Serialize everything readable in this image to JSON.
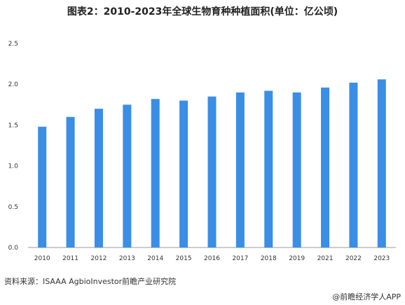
{
  "chart_data": {
    "type": "bar",
    "title": "图表2：2010-2023年全球生物育种种植面积(单位：亿公顷)",
    "categories": [
      "2010",
      "2011",
      "2012",
      "2013",
      "2014",
      "2015",
      "2016",
      "2017",
      "2018",
      "2019",
      "2021",
      "2022",
      "2023"
    ],
    "values": [
      1.48,
      1.6,
      1.7,
      1.75,
      1.82,
      1.8,
      1.85,
      1.9,
      1.92,
      1.9,
      1.96,
      2.02,
      2.06
    ],
    "xlabel": "",
    "ylabel": "",
    "ylim": [
      0,
      2.5
    ],
    "yticks": [
      "0.0",
      "0.5",
      "1.0",
      "1.5",
      "2.0",
      "2.5"
    ],
    "grid": false,
    "bar_color": "#3a8ee6"
  },
  "footer": {
    "source": "资料来源：ISAAA AgbioInvestor前瞻产业研究院",
    "brand": "@前瞻经济学人APP"
  }
}
